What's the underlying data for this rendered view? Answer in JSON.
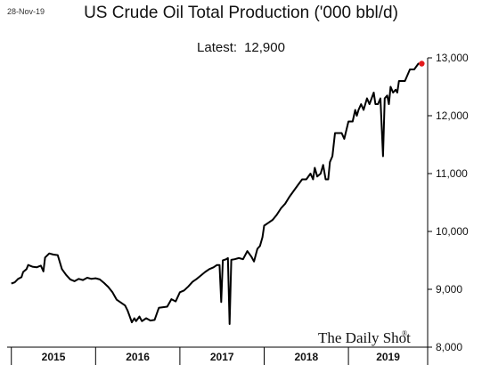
{
  "header": {
    "date": "28-Nov-19"
  },
  "chart_data": {
    "type": "line",
    "title": "US Crude Oil Total Production ('000 bbl/d)",
    "subtitle_label": "Latest:",
    "subtitle_value": "12,900",
    "watermark": "The Daily Shot",
    "watermark_mark": "®",
    "xlabel": "",
    "ylabel": "",
    "x_categories": [
      "2015",
      "2016",
      "2017",
      "2018",
      "2019"
    ],
    "x_range": [
      2014.95,
      2019.94
    ],
    "ylim": [
      8000,
      13000
    ],
    "y_ticks": [
      {
        "value": 8000,
        "label": "8,000"
      },
      {
        "value": 9000,
        "label": "9,000"
      },
      {
        "value": 10000,
        "label": "10,000"
      },
      {
        "value": 11000,
        "label": "11,000"
      },
      {
        "value": 12000,
        "label": "12,000"
      },
      {
        "value": 13000,
        "label": "13,000"
      }
    ],
    "grid": false,
    "line_color": "#000000",
    "marker_color": "#e31a1c",
    "series": [
      {
        "points": [
          [
            2015.0,
            9100
          ],
          [
            2015.04,
            9120
          ],
          [
            2015.08,
            9180
          ],
          [
            2015.12,
            9210
          ],
          [
            2015.14,
            9300
          ],
          [
            2015.18,
            9350
          ],
          [
            2015.2,
            9420
          ],
          [
            2015.25,
            9390
          ],
          [
            2015.3,
            9380
          ],
          [
            2015.35,
            9410
          ],
          [
            2015.38,
            9310
          ],
          [
            2015.4,
            9550
          ],
          [
            2015.45,
            9620
          ],
          [
            2015.5,
            9600
          ],
          [
            2015.55,
            9590
          ],
          [
            2015.6,
            9350
          ],
          [
            2015.65,
            9250
          ],
          [
            2015.7,
            9170
          ],
          [
            2015.75,
            9140
          ],
          [
            2015.8,
            9180
          ],
          [
            2015.85,
            9160
          ],
          [
            2015.9,
            9200
          ],
          [
            2015.95,
            9180
          ],
          [
            2016.0,
            9190
          ],
          [
            2016.05,
            9170
          ],
          [
            2016.1,
            9110
          ],
          [
            2016.15,
            9040
          ],
          [
            2016.2,
            8950
          ],
          [
            2016.25,
            8820
          ],
          [
            2016.3,
            8770
          ],
          [
            2016.35,
            8720
          ],
          [
            2016.38,
            8630
          ],
          [
            2016.4,
            8550
          ],
          [
            2016.43,
            8430
          ],
          [
            2016.46,
            8500
          ],
          [
            2016.48,
            8450
          ],
          [
            2016.52,
            8530
          ],
          [
            2016.55,
            8450
          ],
          [
            2016.6,
            8500
          ],
          [
            2016.65,
            8460
          ],
          [
            2016.7,
            8470
          ],
          [
            2016.75,
            8680
          ],
          [
            2016.8,
            8690
          ],
          [
            2016.85,
            8700
          ],
          [
            2016.9,
            8830
          ],
          [
            2016.95,
            8790
          ],
          [
            2017.0,
            8950
          ],
          [
            2017.05,
            8980
          ],
          [
            2017.1,
            9050
          ],
          [
            2017.15,
            9130
          ],
          [
            2017.2,
            9180
          ],
          [
            2017.25,
            9240
          ],
          [
            2017.3,
            9300
          ],
          [
            2017.35,
            9350
          ],
          [
            2017.4,
            9380
          ],
          [
            2017.44,
            9420
          ],
          [
            2017.47,
            9420
          ],
          [
            2017.49,
            8780
          ],
          [
            2017.51,
            9500
          ],
          [
            2017.55,
            9520
          ],
          [
            2017.57,
            9540
          ],
          [
            2017.59,
            8400
          ],
          [
            2017.61,
            9510
          ],
          [
            2017.65,
            9520
          ],
          [
            2017.7,
            9540
          ],
          [
            2017.75,
            9520
          ],
          [
            2017.8,
            9660
          ],
          [
            2017.85,
            9560
          ],
          [
            2017.88,
            9480
          ],
          [
            2017.92,
            9700
          ],
          [
            2017.95,
            9750
          ],
          [
            2017.98,
            9900
          ],
          [
            2018.0,
            10100
          ],
          [
            2018.05,
            10150
          ],
          [
            2018.1,
            10200
          ],
          [
            2018.15,
            10290
          ],
          [
            2018.2,
            10400
          ],
          [
            2018.25,
            10480
          ],
          [
            2018.3,
            10600
          ],
          [
            2018.35,
            10700
          ],
          [
            2018.4,
            10800
          ],
          [
            2018.45,
            10900
          ],
          [
            2018.5,
            10900
          ],
          [
            2018.55,
            11000
          ],
          [
            2018.58,
            10900
          ],
          [
            2018.6,
            11100
          ],
          [
            2018.63,
            10950
          ],
          [
            2018.67,
            11000
          ],
          [
            2018.7,
            11150
          ],
          [
            2018.73,
            10900
          ],
          [
            2018.76,
            10900
          ],
          [
            2018.78,
            11200
          ],
          [
            2018.81,
            11300
          ],
          [
            2018.84,
            11700
          ],
          [
            2018.88,
            11700
          ],
          [
            2018.92,
            11700
          ],
          [
            2018.95,
            11600
          ],
          [
            2019.0,
            11900
          ],
          [
            2019.05,
            11900
          ],
          [
            2019.08,
            12100
          ],
          [
            2019.1,
            12000
          ],
          [
            2019.12,
            12100
          ],
          [
            2019.15,
            12200
          ],
          [
            2019.18,
            12100
          ],
          [
            2019.22,
            12300
          ],
          [
            2019.25,
            12200
          ],
          [
            2019.3,
            12400
          ],
          [
            2019.32,
            12200
          ],
          [
            2019.35,
            12200
          ],
          [
            2019.38,
            12300
          ],
          [
            2019.41,
            11300
          ],
          [
            2019.43,
            12300
          ],
          [
            2019.46,
            12350
          ],
          [
            2019.48,
            12200
          ],
          [
            2019.5,
            12500
          ],
          [
            2019.53,
            12400
          ],
          [
            2019.56,
            12450
          ],
          [
            2019.58,
            12400
          ],
          [
            2019.6,
            12600
          ],
          [
            2019.67,
            12600
          ],
          [
            2019.7,
            12700
          ],
          [
            2019.73,
            12800
          ],
          [
            2019.78,
            12800
          ],
          [
            2019.83,
            12900
          ],
          [
            2019.87,
            12900
          ]
        ]
      }
    ]
  }
}
